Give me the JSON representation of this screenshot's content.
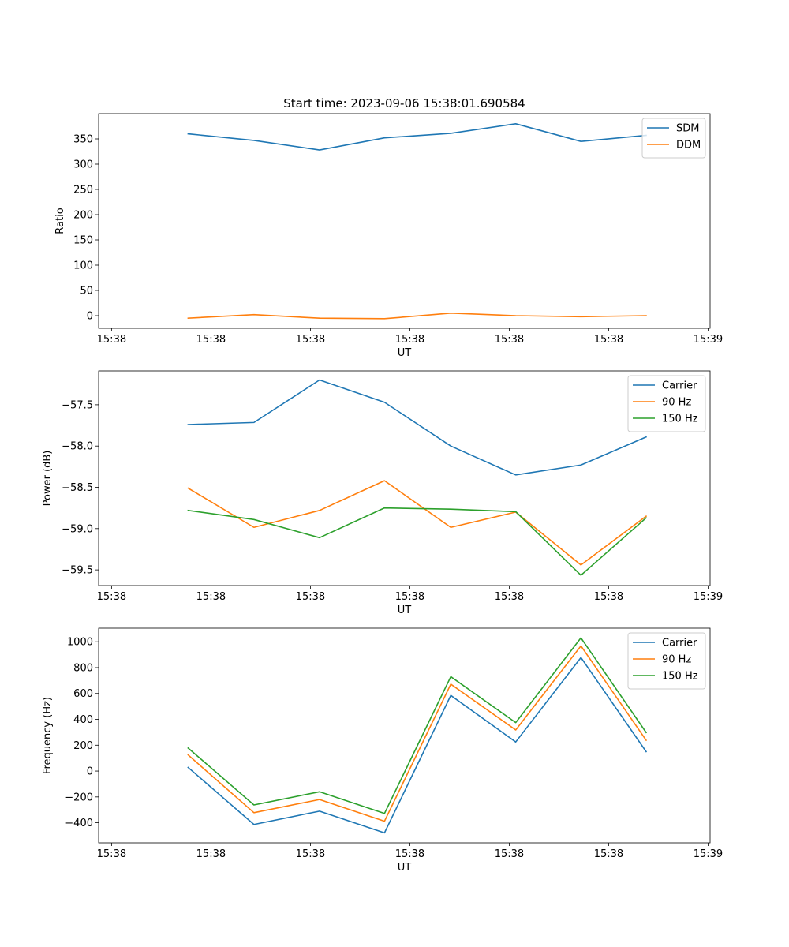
{
  "figure_title": "Start time: 2023-09-06 15:38:01.690584",
  "chart_data": [
    {
      "type": "line",
      "title": "Start time: 2023-09-06 15:38:01.690584",
      "xlabel": "UT",
      "ylabel": "Ratio",
      "x": [
        0.9,
        1.562,
        2.222,
        2.875,
        3.542,
        4.195,
        4.851,
        5.507
      ],
      "xlim": [
        0,
        6.15
      ],
      "xticks": [
        0.13,
        1.13,
        2.13,
        3.13,
        4.13,
        5.13,
        6.13
      ],
      "xtick_labels": [
        "15:38",
        "15:38",
        "15:38",
        "15:38",
        "15:38",
        "15:38",
        "15:39"
      ],
      "ylim": [
        -25,
        400
      ],
      "yticks": [
        0,
        50,
        100,
        150,
        200,
        250,
        300,
        350
      ],
      "ytick_labels": [
        "0",
        "50",
        "100",
        "150",
        "200",
        "250",
        "300",
        "350"
      ],
      "legend": "top-right",
      "series": [
        {
          "name": "SDM",
          "color": "#1f77b4",
          "values": [
            360,
            347,
            328,
            352,
            361,
            380,
            345,
            357
          ]
        },
        {
          "name": "DDM",
          "color": "#ff7f0e",
          "values": [
            -5,
            2,
            -5,
            -6,
            5,
            0,
            -2,
            0
          ]
        }
      ]
    },
    {
      "type": "line",
      "title": "",
      "xlabel": "UT",
      "ylabel": "Power (dB)",
      "x": [
        0.9,
        1.562,
        2.222,
        2.875,
        3.542,
        4.195,
        4.851,
        5.507
      ],
      "xlim": [
        0,
        6.15
      ],
      "xticks": [
        0.13,
        1.13,
        2.13,
        3.13,
        4.13,
        5.13,
        6.13
      ],
      "xtick_labels": [
        "15:38",
        "15:38",
        "15:38",
        "15:38",
        "15:38",
        "15:38",
        "15:39"
      ],
      "ylim": [
        -59.69,
        -57.09
      ],
      "yticks": [
        -57.5,
        -58.0,
        -58.5,
        -59.0,
        -59.5
      ],
      "ytick_labels": [
        "−57.5",
        "−58.0",
        "−58.5",
        "−59.0",
        "−59.5"
      ],
      "legend": "top-right",
      "series": [
        {
          "name": "Carrier",
          "color": "#1f77b4",
          "values": [
            -57.74,
            -57.715,
            -57.2,
            -57.47,
            -58.0,
            -58.35,
            -58.23,
            -57.89
          ]
        },
        {
          "name": "90 Hz",
          "color": "#ff7f0e",
          "values": [
            -58.51,
            -58.985,
            -58.78,
            -58.42,
            -58.985,
            -58.8,
            -59.44,
            -58.85
          ]
        },
        {
          "name": "150 Hz",
          "color": "#2ca02c",
          "values": [
            -58.78,
            -58.89,
            -59.11,
            -58.75,
            -58.765,
            -58.795,
            -59.565,
            -58.87
          ]
        }
      ]
    },
    {
      "type": "line",
      "title": "",
      "xlabel": "UT",
      "ylabel": "Frequency (Hz)",
      "x": [
        0.9,
        1.562,
        2.222,
        2.875,
        3.542,
        4.195,
        4.851,
        5.507
      ],
      "xlim": [
        0,
        6.15
      ],
      "xticks": [
        0.13,
        1.13,
        2.13,
        3.13,
        4.13,
        5.13,
        6.13
      ],
      "xtick_labels": [
        "15:38",
        "15:38",
        "15:38",
        "15:38",
        "15:38",
        "15:38",
        "15:39"
      ],
      "ylim": [
        -555,
        1105
      ],
      "yticks": [
        -400,
        -200,
        0,
        200,
        400,
        600,
        800,
        1000
      ],
      "ytick_labels": [
        "−400",
        "−200",
        "0",
        "200",
        "400",
        "600",
        "800",
        "1000"
      ],
      "legend": "top-right",
      "series": [
        {
          "name": "Carrier",
          "color": "#1f77b4",
          "values": [
            28,
            -413,
            -310,
            -478,
            585,
            225,
            878,
            150
          ]
        },
        {
          "name": "90 Hz",
          "color": "#ff7f0e",
          "values": [
            125,
            -322,
            -220,
            -388,
            672,
            318,
            968,
            238
          ]
        },
        {
          "name": "150 Hz",
          "color": "#2ca02c",
          "values": [
            178,
            -262,
            -160,
            -328,
            730,
            375,
            1030,
            298
          ]
        }
      ]
    }
  ]
}
